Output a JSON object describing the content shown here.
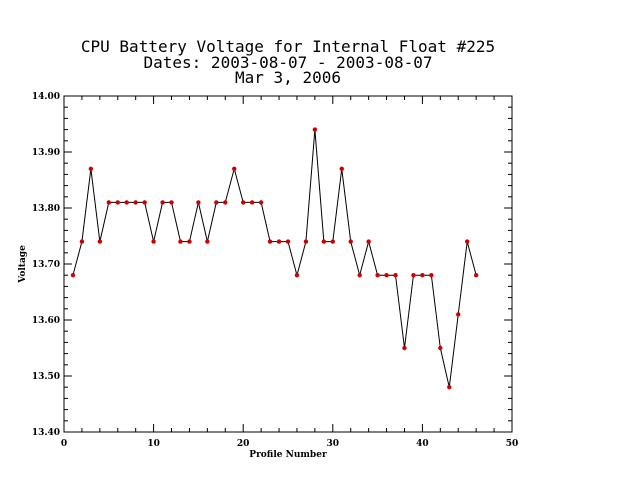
{
  "chart_data": {
    "type": "line",
    "title_lines": [
      "CPU Battery Voltage for Internal Float #225",
      "Dates:  2003-08-07 -  2003-08-07",
      "Mar  3, 2006"
    ],
    "xlabel": "Profile Number",
    "ylabel": "Voltage",
    "xlim": [
      0,
      50
    ],
    "ylim": [
      13.4,
      14.0
    ],
    "x_ticks": [
      0,
      10,
      20,
      30,
      40,
      50
    ],
    "x_tick_labels": [
      "0",
      "10",
      "20",
      "30",
      "40",
      "50"
    ],
    "y_ticks": [
      13.4,
      13.5,
      13.6,
      13.7,
      13.8,
      13.9,
      14.0
    ],
    "y_tick_labels": [
      "13.40",
      "13.50",
      "13.60",
      "13.70",
      "13.80",
      "13.90",
      "14.00"
    ],
    "grid": false,
    "line_color": "#000000",
    "marker_color": "#cc0000",
    "x": [
      1,
      2,
      3,
      4,
      5,
      6,
      7,
      8,
      9,
      10,
      11,
      12,
      13,
      14,
      15,
      16,
      17,
      18,
      19,
      20,
      21,
      22,
      23,
      24,
      25,
      26,
      27,
      28,
      29,
      30,
      31,
      32,
      33,
      34,
      35,
      36,
      37,
      38,
      39,
      40,
      41,
      42,
      43,
      44,
      45,
      46
    ],
    "y": [
      13.68,
      13.74,
      13.87,
      13.74,
      13.81,
      13.81,
      13.81,
      13.81,
      13.81,
      13.74,
      13.81,
      13.81,
      13.74,
      13.74,
      13.81,
      13.74,
      13.81,
      13.81,
      13.87,
      13.81,
      13.81,
      13.81,
      13.74,
      13.74,
      13.74,
      13.68,
      13.74,
      13.94,
      13.74,
      13.74,
      13.87,
      13.74,
      13.68,
      13.74,
      13.68,
      13.68,
      13.68,
      13.55,
      13.68,
      13.68,
      13.68,
      13.55,
      13.48,
      13.61,
      13.74,
      13.68
    ]
  }
}
